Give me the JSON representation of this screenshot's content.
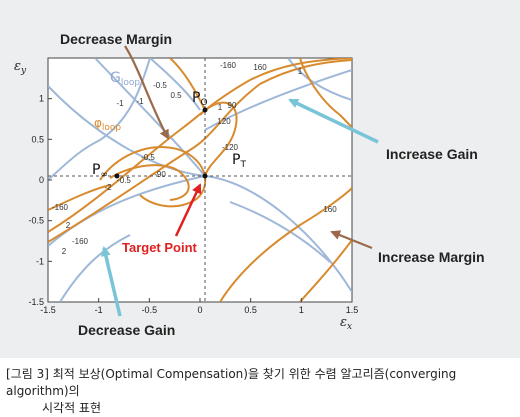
{
  "figure": {
    "annotations": {
      "decrease_margin": "Decrease Margin",
      "increase_gain": "Increase Gain",
      "increase_margin": "Increase Margin",
      "decrease_gain": "Decrease Gain",
      "target_point": "Target Point"
    },
    "legend": {
      "g_loop": "G",
      "g_loop_sub": "loop",
      "phi_loop": "φ",
      "phi_loop_sub": "loop"
    },
    "points": {
      "p_o": "P",
      "p_o_sub": "O",
      "p_inf": "P",
      "p_inf_sub": "∞",
      "p_t": "P",
      "p_t_sub": "T"
    },
    "colors": {
      "blue_contour": "#9fb8d8",
      "orange_contour": "#d88a2e",
      "arrow_cyan": "#7ac4d8",
      "arrow_brown": "#9a6a4a",
      "arrow_red": "#e02020"
    }
  },
  "chart_data": {
    "type": "contour",
    "xlabel": "ε",
    "xlabel_sub": "x",
    "ylabel": "ε",
    "ylabel_sub": "y",
    "xlim": [
      -1.5,
      1.5
    ],
    "ylim": [
      -1.5,
      1.5
    ],
    "x_ticks": [
      "-1.5",
      "-1",
      "-0.5",
      "0",
      "0.5",
      "1",
      "1.5"
    ],
    "y_ticks": [
      "1",
      "0.5",
      "0",
      "-0.5",
      "-1",
      "-1.5"
    ],
    "target_point": [
      0,
      0
    ],
    "p_inf": [
      -0.85,
      0
    ],
    "p_o": [
      0,
      0.62
    ],
    "contour_labels": [
      "-0.5",
      "0.5",
      "-160",
      "160",
      "-1",
      "-120",
      "120",
      "-90",
      "90",
      "-2",
      "2",
      "-0.5",
      "-0.5",
      "-160",
      "-160",
      "160",
      "1",
      "1",
      "-1",
      "2"
    ]
  },
  "caption": {
    "line1": "[그림 3] 최적 보상(Optimal Compensation)을 찾기 위한 수렴 알고리즘(converging algorithm)의",
    "line2": "시각적 표현"
  }
}
